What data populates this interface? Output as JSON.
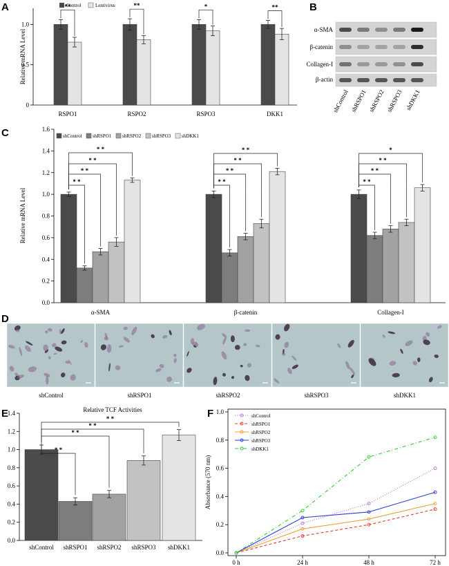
{
  "panels": {
    "A": "A",
    "B": "B",
    "C": "C",
    "D": "D",
    "E": "E",
    "F": "F"
  },
  "colors": {
    "s1": "#4a4a4a",
    "s2": "#7d7d7d",
    "s3": "#a2a2a2",
    "s4": "#c2c2c2",
    "s5": "#e4e4e4",
    "bg": "#b4c6c8"
  },
  "chart_data": [
    {
      "panel": "A",
      "type": "bar",
      "ylabel": "Relative mRNA Level",
      "categories": [
        "RSPO1",
        "RSPO2",
        "RSPO3",
        "DKK1"
      ],
      "legend": [
        "Control",
        "Lentivirus"
      ],
      "ylim": [
        0,
        1.2
      ],
      "yticks": [
        "0",
        "0.5",
        "1.0"
      ],
      "series": [
        {
          "name": "Control",
          "values": [
            1.0,
            1.0,
            1.0,
            1.0
          ],
          "err": [
            0.06,
            0.07,
            0.06,
            0.05
          ]
        },
        {
          "name": "Lentivirus",
          "values": [
            0.78,
            0.81,
            0.92,
            0.88
          ],
          "err": [
            0.06,
            0.05,
            0.06,
            0.07
          ]
        }
      ],
      "significance": [
        "**",
        "**",
        "*",
        "**"
      ]
    },
    {
      "panel": "B",
      "type": "table",
      "rows": [
        "α-SMA",
        "β-catenin",
        "Collagen-I",
        "β-actin"
      ],
      "columns": [
        "shControl",
        "shRSPO1",
        "shRSPO2",
        "shRSPO3",
        "shDKK1"
      ],
      "intensity": [
        [
          0.7,
          0.45,
          0.35,
          0.45,
          0.95
        ],
        [
          0.35,
          0.25,
          0.25,
          0.25,
          0.85
        ],
        [
          0.5,
          0.3,
          0.3,
          0.35,
          0.7
        ],
        [
          0.65,
          0.65,
          0.65,
          0.65,
          0.65
        ]
      ]
    },
    {
      "panel": "C",
      "type": "bar",
      "ylabel": "Relative mRNA Level",
      "categories": [
        "α-SMA",
        "β-catenin",
        "Collagen-I"
      ],
      "legend": [
        "shControl",
        "shRSPO1",
        "shRSPO2",
        "shRSPO3",
        "shDKK1"
      ],
      "ylim": [
        0,
        1.6
      ],
      "yticks": [
        "0.0",
        "0.2",
        "0.4",
        "0.6",
        "0.8",
        "1.0",
        "1.2",
        "1.4",
        "1.6"
      ],
      "series": [
        {
          "name": "shControl",
          "values": [
            1.0,
            1.0,
            1.0
          ],
          "err": [
            0.02,
            0.03,
            0.04
          ]
        },
        {
          "name": "shRSPO1",
          "values": [
            0.32,
            0.46,
            0.62
          ],
          "err": [
            0.02,
            0.03,
            0.03
          ]
        },
        {
          "name": "shRSPO2",
          "values": [
            0.47,
            0.61,
            0.68
          ],
          "err": [
            0.03,
            0.03,
            0.03
          ]
        },
        {
          "name": "shRSPO3",
          "values": [
            0.56,
            0.73,
            0.74
          ],
          "err": [
            0.04,
            0.04,
            0.03
          ]
        },
        {
          "name": "shDKK1",
          "values": [
            1.13,
            1.21,
            1.06
          ],
          "err": [
            0.02,
            0.03,
            0.03
          ]
        }
      ],
      "significance": [
        [
          "* *",
          "* *",
          "* *",
          "* *"
        ],
        [
          "* *",
          "* *",
          "* *",
          "* *"
        ],
        [
          "* *",
          "* *",
          "* *",
          "*"
        ]
      ]
    },
    {
      "panel": "D",
      "type": "table",
      "images": [
        "shControl",
        "shRSPO1",
        "shRSPO2",
        "shRSPO3",
        "shDKK1"
      ]
    },
    {
      "panel": "E",
      "type": "bar",
      "title": "Relative TCF Activities",
      "categories": [
        "shControl",
        "shRSPO1",
        "shRSPO2",
        "shRSPO3",
        "shDKK1"
      ],
      "values": [
        1.0,
        0.43,
        0.51,
        0.88,
        1.16
      ],
      "err": [
        0.05,
        0.04,
        0.04,
        0.05,
        0.06
      ],
      "ylim": [
        0,
        1.4
      ],
      "yticks": [
        "0.0",
        "0.2",
        "0.4",
        "0.6",
        "0.8",
        "1.0",
        "1.2",
        "1.4"
      ],
      "significance": [
        "* *",
        "* *",
        "* *",
        "* *"
      ]
    },
    {
      "panel": "F",
      "type": "line",
      "ylabel": "Absorbance (570 nm)",
      "x": [
        "0 h",
        "24 h",
        "48 h",
        "72 h"
      ],
      "ylim": [
        0,
        1.0
      ],
      "yticks": [
        "0.0",
        "0.2",
        "0.4",
        "0.6",
        "0.8",
        "1.0"
      ],
      "series": [
        {
          "name": "shControl",
          "values": [
            0.0,
            0.21,
            0.35,
            0.6
          ],
          "color": "#b070d8",
          "dash": "1,2",
          "marker": "o"
        },
        {
          "name": "shRSPO1",
          "values": [
            0.0,
            0.12,
            0.2,
            0.31
          ],
          "color": "#e03a2a",
          "dash": "4,3",
          "marker": "^"
        },
        {
          "name": "shRSPO2",
          "values": [
            0.0,
            0.17,
            0.24,
            0.35
          ],
          "color": "#f0a030",
          "dash": "",
          "marker": "+"
        },
        {
          "name": "shRSPO3",
          "values": [
            0.0,
            0.25,
            0.29,
            0.43
          ],
          "color": "#2b3bd8",
          "dash": "",
          "marker": "x"
        },
        {
          "name": "shDKK1",
          "values": [
            0.0,
            0.3,
            0.68,
            0.82
          ],
          "color": "#2ecc2e",
          "dash": "5,3,1,3",
          "marker": "*"
        }
      ]
    }
  ]
}
